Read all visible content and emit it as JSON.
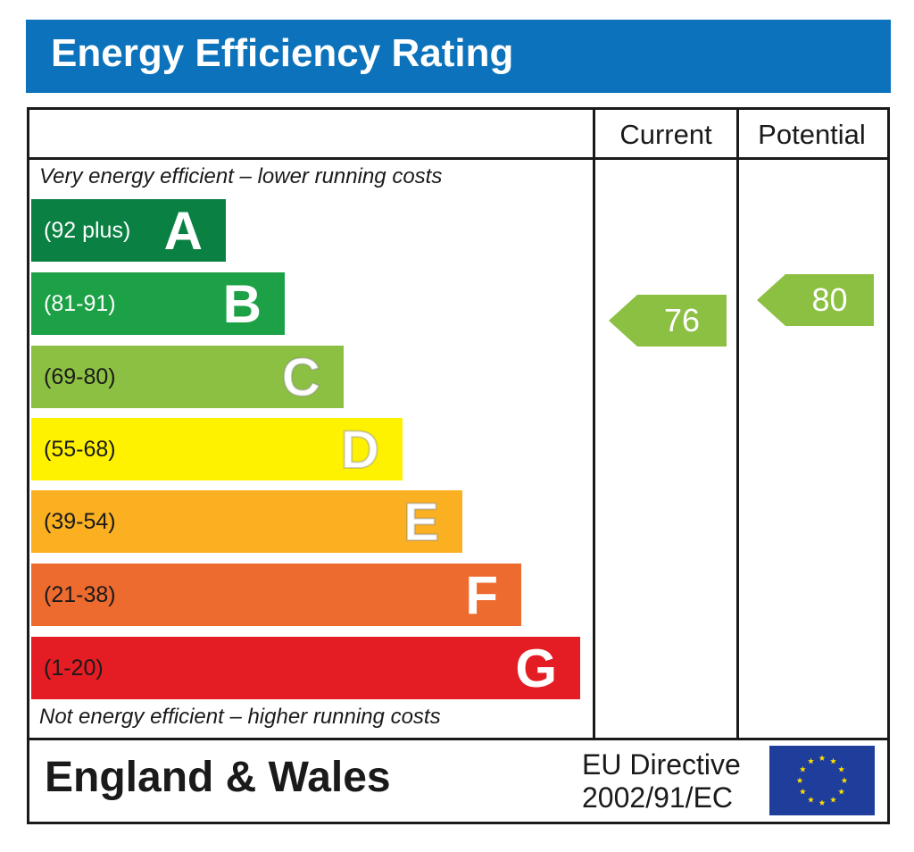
{
  "title": "Energy Efficiency Rating",
  "columns": {
    "current": "Current",
    "potential": "Potential"
  },
  "top_note": "Very energy efficient – lower running costs",
  "bottom_note": "Not energy efficient – higher running costs",
  "bands": [
    {
      "range": "(92 plus)",
      "letter": "A",
      "color": "#0a8043",
      "text_color": "#ffffff"
    },
    {
      "range": "(81-91)",
      "letter": "B",
      "color": "#1ca146",
      "text_color": "#ffffff"
    },
    {
      "range": "(69-80)",
      "letter": "C",
      "color": "#8cc043",
      "text_color": "#1a1a1a"
    },
    {
      "range": "(55-68)",
      "letter": "D",
      "color": "#fff200",
      "text_color": "#1a1a1a"
    },
    {
      "range": "(39-54)",
      "letter": "E",
      "color": "#fbb021",
      "text_color": "#1a1a1a"
    },
    {
      "range": "(21-38)",
      "letter": "F",
      "color": "#ee6b2f",
      "text_color": "#1a1a1a"
    },
    {
      "range": "(1-20)",
      "letter": "G",
      "color": "#e31d23",
      "text_color": "#1a1a1a"
    }
  ],
  "chart_data": {
    "type": "bar",
    "title": "Energy Efficiency Rating",
    "categories": [
      "A",
      "B",
      "C",
      "D",
      "E",
      "F",
      "G"
    ],
    "ranges": [
      "(92 plus)",
      "(81-91)",
      "(69-80)",
      "(55-68)",
      "(39-54)",
      "(21-38)",
      "(1-20)"
    ],
    "current_rating": 76,
    "potential_rating": 80,
    "current_band": "C",
    "potential_band": "C"
  },
  "ratings": {
    "current": "76",
    "potential": "80",
    "arrow_color": "#8cc043"
  },
  "footer": {
    "region": "England & Wales",
    "directive_line1": "EU Directive",
    "directive_line2": "2002/91/EC",
    "flag_color": "#1f3e9b",
    "star_color": "#ffde00"
  }
}
